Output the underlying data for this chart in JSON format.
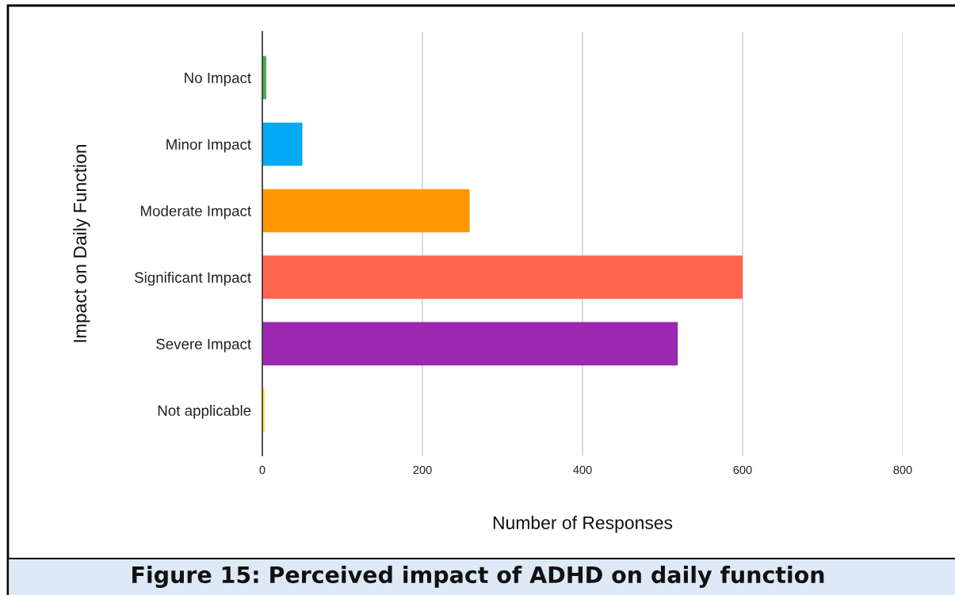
{
  "chart_data": {
    "type": "bar",
    "orientation": "horizontal",
    "title": "Figure 15: Perceived impact of ADHD on daily function",
    "xlabel": "Number of Responses",
    "ylabel": "Impact on Daily Function",
    "categories": [
      "No Impact",
      "Minor Impact",
      "Moderate Impact",
      "Significant Impact",
      "Severe Impact",
      "Not applicable"
    ],
    "values": [
      5,
      50,
      259,
      600,
      519,
      3
    ],
    "colors": [
      "#4caf50",
      "#03a9f4",
      "#ff9800",
      "#ff6550",
      "#9c27b0",
      "#ffeb3b"
    ],
    "xlim": [
      0,
      800
    ],
    "xticks": [
      0,
      200,
      400,
      600,
      800
    ],
    "grid": "x"
  }
}
